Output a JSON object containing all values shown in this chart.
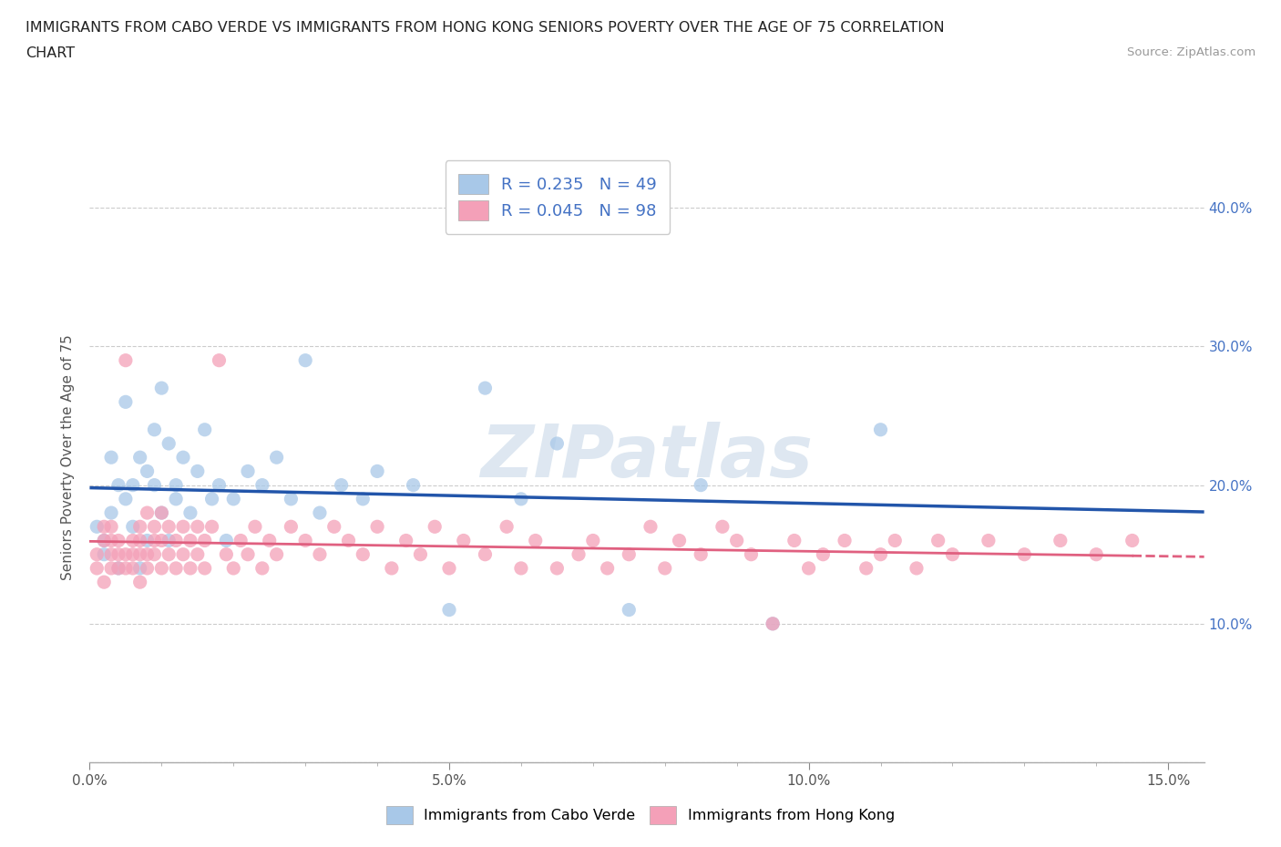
{
  "title_line1": "IMMIGRANTS FROM CABO VERDE VS IMMIGRANTS FROM HONG KONG SENIORS POVERTY OVER THE AGE OF 75 CORRELATION",
  "title_line2": "CHART",
  "source": "Source: ZipAtlas.com",
  "ylabel": "Seniors Poverty Over the Age of 75",
  "xlim": [
    0.0,
    0.155
  ],
  "ylim": [
    0.0,
    0.44
  ],
  "cabo_verde_color": "#a8c8e8",
  "hong_kong_color": "#f4a0b8",
  "cabo_verde_line_color": "#2255aa",
  "hong_kong_line_color": "#e06080",
  "R_cabo": 0.235,
  "N_cabo": 49,
  "R_hk": 0.045,
  "N_hk": 98,
  "legend_label_cabo": "Immigrants from Cabo Verde",
  "legend_label_hk": "Immigrants from Hong Kong",
  "watermark": "ZIPatlas",
  "tick_color": "#4472c4",
  "cabo_verde_x": [
    0.001,
    0.002,
    0.002,
    0.003,
    0.003,
    0.004,
    0.004,
    0.005,
    0.005,
    0.006,
    0.006,
    0.007,
    0.007,
    0.008,
    0.008,
    0.009,
    0.009,
    0.01,
    0.01,
    0.011,
    0.011,
    0.012,
    0.012,
    0.013,
    0.014,
    0.015,
    0.016,
    0.017,
    0.018,
    0.019,
    0.02,
    0.022,
    0.024,
    0.026,
    0.028,
    0.03,
    0.032,
    0.035,
    0.038,
    0.04,
    0.045,
    0.05,
    0.055,
    0.06,
    0.065,
    0.075,
    0.085,
    0.095,
    0.11
  ],
  "cabo_verde_y": [
    0.17,
    0.16,
    0.15,
    0.18,
    0.22,
    0.14,
    0.2,
    0.26,
    0.19,
    0.17,
    0.2,
    0.14,
    0.22,
    0.21,
    0.16,
    0.2,
    0.24,
    0.27,
    0.18,
    0.23,
    0.16,
    0.19,
    0.2,
    0.22,
    0.18,
    0.21,
    0.24,
    0.19,
    0.2,
    0.16,
    0.19,
    0.21,
    0.2,
    0.22,
    0.19,
    0.29,
    0.18,
    0.2,
    0.19,
    0.21,
    0.2,
    0.11,
    0.27,
    0.19,
    0.23,
    0.11,
    0.2,
    0.1,
    0.24
  ],
  "hong_kong_x": [
    0.001,
    0.001,
    0.002,
    0.002,
    0.002,
    0.003,
    0.003,
    0.003,
    0.003,
    0.004,
    0.004,
    0.004,
    0.005,
    0.005,
    0.005,
    0.006,
    0.006,
    0.006,
    0.007,
    0.007,
    0.007,
    0.007,
    0.008,
    0.008,
    0.008,
    0.009,
    0.009,
    0.009,
    0.01,
    0.01,
    0.01,
    0.011,
    0.011,
    0.012,
    0.012,
    0.013,
    0.013,
    0.014,
    0.014,
    0.015,
    0.015,
    0.016,
    0.016,
    0.017,
    0.018,
    0.019,
    0.02,
    0.021,
    0.022,
    0.023,
    0.024,
    0.025,
    0.026,
    0.028,
    0.03,
    0.032,
    0.034,
    0.036,
    0.038,
    0.04,
    0.042,
    0.044,
    0.046,
    0.048,
    0.05,
    0.052,
    0.055,
    0.058,
    0.06,
    0.062,
    0.065,
    0.068,
    0.07,
    0.072,
    0.075,
    0.078,
    0.08,
    0.082,
    0.085,
    0.088,
    0.09,
    0.092,
    0.095,
    0.098,
    0.1,
    0.102,
    0.105,
    0.108,
    0.11,
    0.112,
    0.115,
    0.118,
    0.12,
    0.125,
    0.13,
    0.135,
    0.14,
    0.145
  ],
  "hong_kong_y": [
    0.15,
    0.14,
    0.13,
    0.16,
    0.17,
    0.15,
    0.14,
    0.16,
    0.17,
    0.14,
    0.15,
    0.16,
    0.14,
    0.15,
    0.29,
    0.14,
    0.15,
    0.16,
    0.13,
    0.15,
    0.16,
    0.17,
    0.14,
    0.15,
    0.18,
    0.15,
    0.16,
    0.17,
    0.14,
    0.16,
    0.18,
    0.15,
    0.17,
    0.14,
    0.16,
    0.15,
    0.17,
    0.14,
    0.16,
    0.15,
    0.17,
    0.14,
    0.16,
    0.17,
    0.29,
    0.15,
    0.14,
    0.16,
    0.15,
    0.17,
    0.14,
    0.16,
    0.15,
    0.17,
    0.16,
    0.15,
    0.17,
    0.16,
    0.15,
    0.17,
    0.14,
    0.16,
    0.15,
    0.17,
    0.14,
    0.16,
    0.15,
    0.17,
    0.14,
    0.16,
    0.14,
    0.15,
    0.16,
    0.14,
    0.15,
    0.17,
    0.14,
    0.16,
    0.15,
    0.17,
    0.16,
    0.15,
    0.1,
    0.16,
    0.14,
    0.15,
    0.16,
    0.14,
    0.15,
    0.16,
    0.14,
    0.16,
    0.15,
    0.16,
    0.15,
    0.16,
    0.15,
    0.16
  ]
}
